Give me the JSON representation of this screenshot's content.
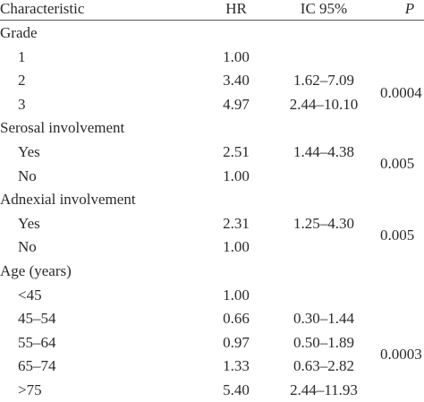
{
  "header": {
    "characteristic": "Characteristic",
    "hr": "HR",
    "ci": "IC 95%",
    "p": "P"
  },
  "groups": [
    {
      "label": "Grade",
      "p": "0.0004",
      "rows": [
        {
          "label": "1",
          "hr": "1.00"
        },
        {
          "label": "2",
          "hr": "3.40",
          "ci": "1.62–7.09"
        },
        {
          "label": "3",
          "hr": "4.97",
          "ci": "2.44–10.10"
        }
      ]
    },
    {
      "label": "Serosal involvement",
      "p": "0.005",
      "rows": [
        {
          "label": "Yes",
          "hr": "2.51",
          "ci": "1.44–4.38"
        },
        {
          "label": "No",
          "hr": "1.00"
        }
      ]
    },
    {
      "label": "Adnexial involvement",
      "p": "0.005",
      "rows": [
        {
          "label": "Yes",
          "hr": "2.31",
          "ci": "1.25–4.30"
        },
        {
          "label": "No",
          "hr": "1.00"
        }
      ]
    },
    {
      "label": "Age (years)",
      "p": "0.0003",
      "rows": [
        {
          "label": "<45",
          "hr": "1.00"
        },
        {
          "label": "45–54",
          "hr": "0.66",
          "ci": "0.30–1.44"
        },
        {
          "label": "55–64",
          "hr": "0.97",
          "ci": "0.50–1.89"
        },
        {
          "label": "65–74",
          "hr": "1.33",
          "ci": "0.63–2.82"
        },
        {
          "label": ">75",
          "hr": "5.40",
          "ci": "2.44–11.93"
        }
      ]
    }
  ]
}
